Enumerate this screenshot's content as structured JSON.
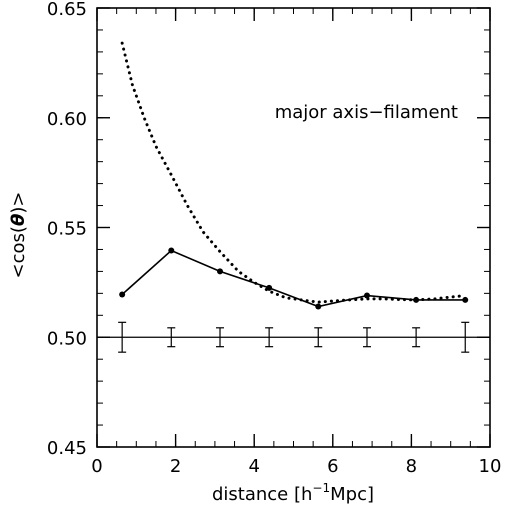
{
  "chart_data": {
    "type": "line",
    "title": "",
    "xlabel": "distance [h^-1Mpc]",
    "xlabel_parts": {
      "main": "distance [h",
      "sup": "−1",
      "tail": "Mpc]"
    },
    "ylabel": "<cos(θ)>",
    "ylabel_parts": {
      "pre": "<cos(",
      "theta": "θ",
      "post": ")>"
    },
    "annotation": "major axis−filament",
    "xlim": [
      0,
      10
    ],
    "ylim": [
      0.45,
      0.65
    ],
    "xticks": [
      0,
      2,
      4,
      6,
      8,
      10
    ],
    "xtick_labels": [
      "0",
      "2",
      "4",
      "6",
      "8",
      "10"
    ],
    "yticks": [
      0.45,
      0.5,
      0.55,
      0.6,
      0.65
    ],
    "ytick_labels": [
      "0.45",
      "0.50",
      "0.55",
      "0.60",
      "0.65"
    ],
    "x_minor_step": 0.5,
    "y_minor_step": 0.01,
    "reference_line": 0.5,
    "series": [
      {
        "style": "solid-with-markers",
        "x": [
          0.64,
          1.89,
          3.13,
          4.38,
          5.63,
          6.87,
          8.12,
          9.37
        ],
        "y": [
          0.5195,
          0.5395,
          0.53,
          0.5225,
          0.514,
          0.519,
          0.517,
          0.517
        ]
      },
      {
        "style": "dotted",
        "x": [
          0.64,
          0.9,
          1.2,
          1.5,
          1.89,
          2.3,
          2.7,
          3.13,
          3.6,
          4.0,
          4.38,
          4.8,
          5.2,
          5.63,
          6.0,
          6.4,
          6.87,
          7.3,
          7.7,
          8.12,
          8.6,
          9.0,
          9.37
        ],
        "y": [
          0.634,
          0.615,
          0.6,
          0.587,
          0.574,
          0.56,
          0.548,
          0.539,
          0.53,
          0.525,
          0.521,
          0.518,
          0.517,
          0.516,
          0.5165,
          0.517,
          0.5175,
          0.5175,
          0.5172,
          0.517,
          0.5175,
          0.5183,
          0.519
        ]
      }
    ],
    "error_bars": {
      "x": [
        0.64,
        1.89,
        3.13,
        4.38,
        5.63,
        6.87,
        8.12,
        9.37
      ],
      "center": [
        0.5,
        0.5,
        0.5,
        0.5,
        0.5,
        0.5,
        0.5,
        0.5
      ],
      "halfwidth": [
        0.0068,
        0.0043,
        0.0043,
        0.0043,
        0.0043,
        0.0043,
        0.0043,
        0.0068
      ]
    },
    "grid": false,
    "legend": "none"
  }
}
